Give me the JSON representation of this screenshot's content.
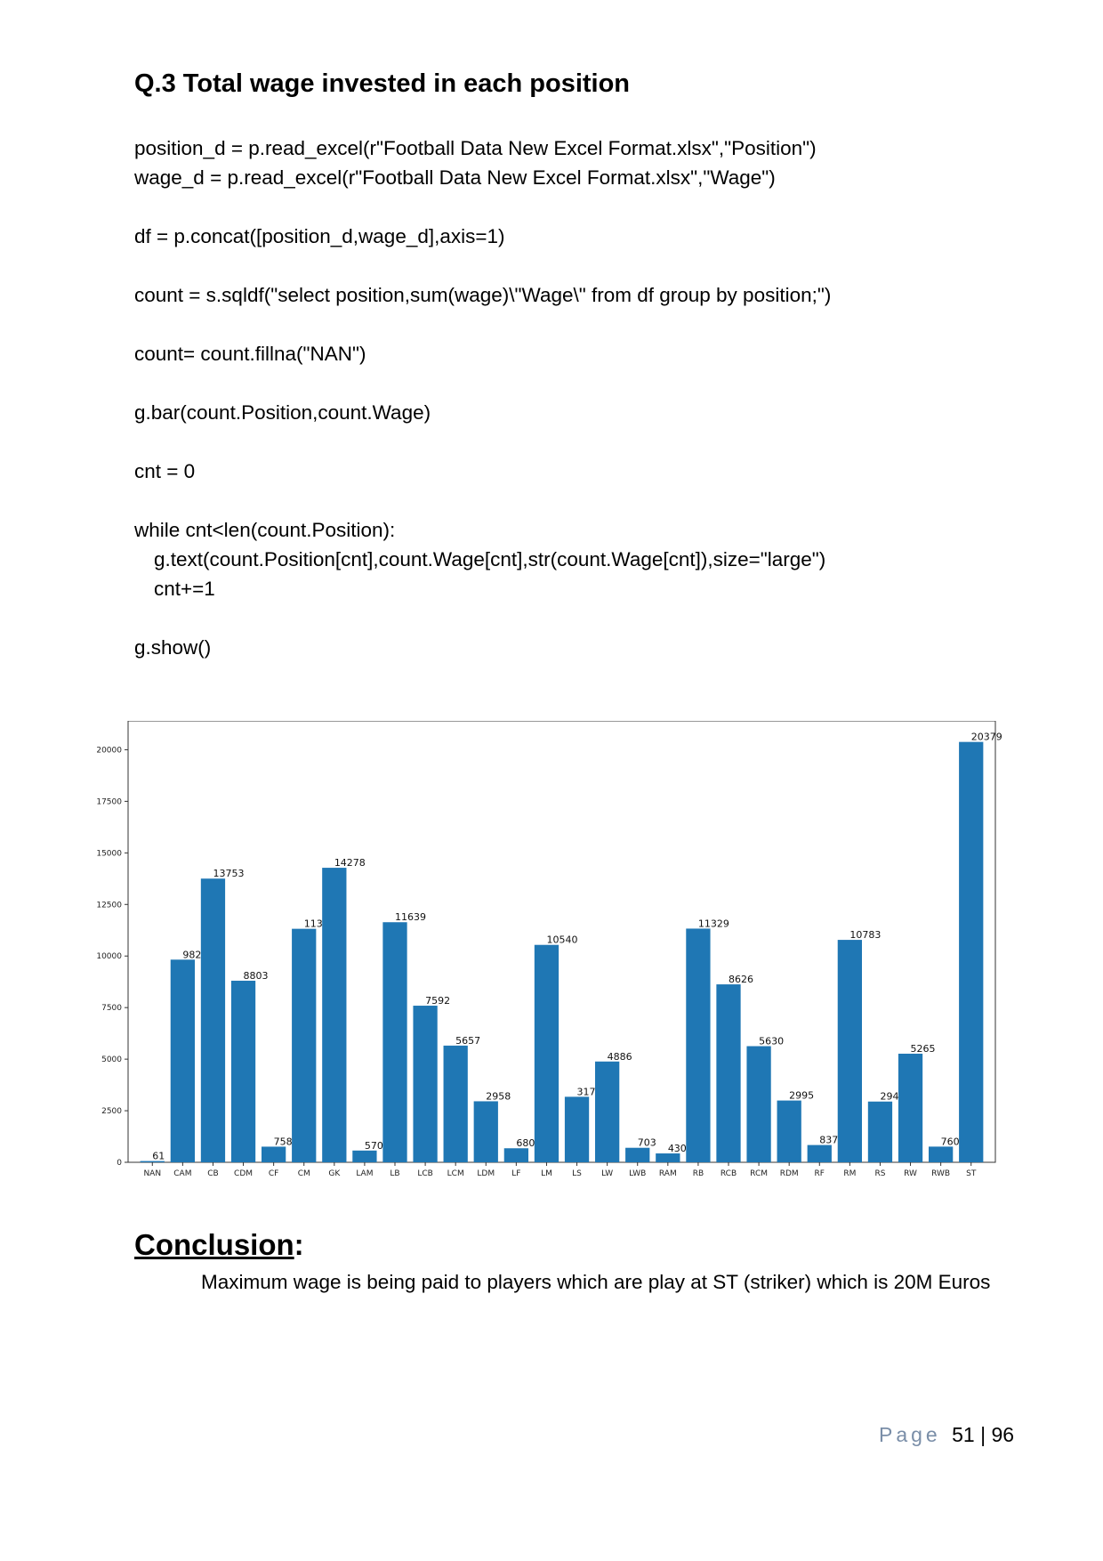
{
  "title": "Q.3 Total wage invested in each position",
  "code": [
    {
      "text": "position_d = p.read_excel(r\"Football Data New Excel Format.xlsx\",\"Position\")"
    },
    {
      "text": "wage_d = p.read_excel(r\"Football Data New Excel Format.xlsx\",\"Wage\")"
    },
    {
      "text": ""
    },
    {
      "text": "df = p.concat([position_d,wage_d],axis=1)"
    },
    {
      "text": ""
    },
    {
      "text": "count = s.sqldf(\"select position,sum(wage)\\\"Wage\\\" from df group by position;\")"
    },
    {
      "text": ""
    },
    {
      "text": "count= count.fillna(\"NAN\")"
    },
    {
      "text": ""
    },
    {
      "text": "g.bar(count.Position,count.Wage)"
    },
    {
      "text": ""
    },
    {
      "text": "cnt = 0"
    },
    {
      "text": ""
    },
    {
      "text": "while cnt<len(count.Position):"
    },
    {
      "text": "g.text(count.Position[cnt],count.Wage[cnt],str(count.Wage[cnt]),size=\"large\")",
      "indent": true
    },
    {
      "text": "cnt+=1",
      "indent": true
    },
    {
      "text": ""
    },
    {
      "text": "g.show()"
    }
  ],
  "chart_data": {
    "type": "bar",
    "categories": [
      "NAN",
      "CAM",
      "CB",
      "CDM",
      "CF",
      "CM",
      "GK",
      "LAM",
      "LB",
      "LCB",
      "LCM",
      "LDM",
      "LF",
      "LM",
      "LS",
      "LW",
      "LWB",
      "RAM",
      "RB",
      "RCB",
      "RCM",
      "RDM",
      "RF",
      "RM",
      "RS",
      "RW",
      "RWB",
      "ST"
    ],
    "values": [
      61,
      9825,
      13753,
      8803,
      758,
      11320,
      14278,
      570,
      11639,
      7592,
      5657,
      2958,
      680,
      10540,
      3176,
      4886,
      703,
      430,
      11329,
      8626,
      5630,
      2995,
      837,
      10783,
      2945,
      5265,
      760,
      20379
    ],
    "yticks": [
      0,
      2500,
      5000,
      7500,
      10000,
      12500,
      15000,
      17500,
      20000
    ],
    "ylim": [
      0,
      21400
    ],
    "bar_color": "#1f77b4",
    "grid": false,
    "data_labels": true
  },
  "conclusion": {
    "heading": "Conclusion",
    "colon": ":",
    "text": "Maximum wage is being paid to players which are play at ST (striker) which is 20M Euros"
  },
  "footer": {
    "page_word": "Page",
    "page_current": "51",
    "separator": "|",
    "page_total": "96"
  }
}
